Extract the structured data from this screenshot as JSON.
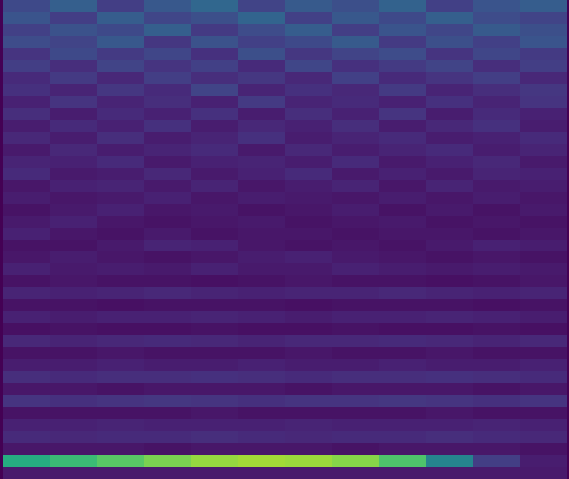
{
  "chart_data": {
    "type": "heatmap",
    "color": "viridis",
    "tick_labels": false,
    "zlim": [
      0,
      1
    ],
    "values": [
      [
        0.22,
        0.3,
        0.18,
        0.27,
        0.33,
        0.2,
        0.28,
        0.24,
        0.31,
        0.19,
        0.26,
        0.29
      ],
      [
        0.26,
        0.18,
        0.29,
        0.21,
        0.24,
        0.32,
        0.19,
        0.27,
        0.22,
        0.3,
        0.23,
        0.2
      ],
      [
        0.19,
        0.25,
        0.22,
        0.3,
        0.17,
        0.23,
        0.29,
        0.18,
        0.26,
        0.21,
        0.28,
        0.24
      ],
      [
        0.23,
        0.2,
        0.27,
        0.16,
        0.25,
        0.19,
        0.22,
        0.28,
        0.17,
        0.24,
        0.19,
        0.26
      ],
      [
        0.15,
        0.22,
        0.17,
        0.21,
        0.14,
        0.24,
        0.16,
        0.2,
        0.23,
        0.15,
        0.21,
        0.17
      ],
      [
        0.18,
        0.13,
        0.2,
        0.15,
        0.19,
        0.12,
        0.21,
        0.14,
        0.17,
        0.2,
        0.13,
        0.18
      ],
      [
        0.12,
        0.17,
        0.11,
        0.18,
        0.13,
        0.16,
        0.11,
        0.19,
        0.12,
        0.15,
        0.18,
        0.11
      ],
      [
        0.14,
        0.1,
        0.16,
        0.12,
        0.2,
        0.1,
        0.14,
        0.11,
        0.17,
        0.1,
        0.13,
        0.16
      ],
      [
        0.09,
        0.15,
        0.1,
        0.13,
        0.09,
        0.17,
        0.1,
        0.12,
        0.09,
        0.14,
        0.1,
        0.15
      ],
      [
        0.13,
        0.08,
        0.12,
        0.09,
        0.14,
        0.08,
        0.13,
        0.09,
        0.15,
        0.08,
        0.12,
        0.09
      ],
      [
        0.08,
        0.12,
        0.09,
        0.14,
        0.08,
        0.11,
        0.09,
        0.13,
        0.08,
        0.11,
        0.14,
        0.08
      ],
      [
        0.11,
        0.08,
        0.13,
        0.08,
        0.1,
        0.14,
        0.08,
        0.1,
        0.12,
        0.08,
        0.09,
        0.12
      ],
      [
        0.07,
        0.11,
        0.08,
        0.1,
        0.12,
        0.07,
        0.11,
        0.08,
        0.1,
        0.12,
        0.08,
        0.1
      ],
      [
        0.1,
        0.09,
        0.12,
        0.07,
        0.09,
        0.1,
        0.08,
        0.12,
        0.07,
        0.09,
        0.11,
        0.07
      ],
      [
        0.12,
        0.07,
        0.08,
        0.11,
        0.07,
        0.09,
        0.12,
        0.07,
        0.09,
        0.07,
        0.1,
        0.09
      ],
      [
        0.06,
        0.09,
        0.1,
        0.07,
        0.1,
        0.06,
        0.08,
        0.1,
        0.06,
        0.1,
        0.07,
        0.08
      ],
      [
        0.08,
        0.06,
        0.07,
        0.09,
        0.06,
        0.08,
        0.07,
        0.06,
        0.08,
        0.06,
        0.08,
        0.06
      ],
      [
        0.05,
        0.07,
        0.09,
        0.06,
        0.07,
        0.05,
        0.06,
        0.08,
        0.05,
        0.07,
        0.05,
        0.07
      ],
      [
        0.07,
        0.09,
        0.06,
        0.05,
        0.06,
        0.07,
        0.05,
        0.06,
        0.07,
        0.05,
        0.06,
        0.05
      ],
      [
        0.09,
        0.06,
        0.05,
        0.07,
        0.05,
        0.06,
        0.06,
        0.05,
        0.06,
        0.06,
        0.05,
        0.06
      ],
      [
        0.05,
        0.05,
        0.07,
        0.1,
        0.09,
        0.06,
        0.05,
        0.06,
        0.05,
        0.07,
        0.09,
        0.08
      ],
      [
        0.06,
        0.08,
        0.06,
        0.05,
        0.06,
        0.08,
        0.09,
        0.07,
        0.06,
        0.05,
        0.06,
        0.05
      ],
      [
        0.09,
        0.07,
        0.08,
        0.07,
        0.09,
        0.07,
        0.07,
        0.09,
        0.08,
        0.07,
        0.08,
        0.07
      ],
      [
        0.05,
        0.06,
        0.05,
        0.05,
        0.04,
        0.05,
        0.06,
        0.05,
        0.05,
        0.04,
        0.05,
        0.06
      ],
      [
        0.1,
        0.09,
        0.1,
        0.11,
        0.1,
        0.09,
        0.1,
        0.1,
        0.11,
        0.1,
        0.09,
        0.1
      ],
      [
        0.05,
        0.05,
        0.04,
        0.05,
        0.05,
        0.05,
        0.04,
        0.05,
        0.05,
        0.05,
        0.04,
        0.05
      ],
      [
        0.09,
        0.08,
        0.09,
        0.09,
        0.1,
        0.09,
        0.08,
        0.09,
        0.09,
        0.1,
        0.09,
        0.08
      ],
      [
        0.04,
        0.05,
        0.04,
        0.04,
        0.05,
        0.04,
        0.04,
        0.05,
        0.04,
        0.04,
        0.05,
        0.04
      ],
      [
        0.11,
        0.1,
        0.11,
        0.12,
        0.11,
        0.1,
        0.11,
        0.11,
        0.12,
        0.11,
        0.1,
        0.11
      ],
      [
        0.05,
        0.05,
        0.06,
        0.05,
        0.05,
        0.05,
        0.06,
        0.05,
        0.05,
        0.06,
        0.05,
        0.05
      ],
      [
        0.08,
        0.08,
        0.09,
        0.08,
        0.08,
        0.09,
        0.08,
        0.08,
        0.09,
        0.08,
        0.08,
        0.09
      ],
      [
        0.13,
        0.12,
        0.13,
        0.13,
        0.14,
        0.13,
        0.12,
        0.13,
        0.13,
        0.14,
        0.13,
        0.12
      ],
      [
        0.06,
        0.06,
        0.05,
        0.06,
        0.06,
        0.06,
        0.05,
        0.06,
        0.06,
        0.06,
        0.05,
        0.06
      ],
      [
        0.15,
        0.14,
        0.15,
        0.16,
        0.15,
        0.14,
        0.15,
        0.15,
        0.16,
        0.15,
        0.14,
        0.15
      ],
      [
        0.05,
        0.05,
        0.05,
        0.05,
        0.06,
        0.05,
        0.05,
        0.05,
        0.05,
        0.06,
        0.05,
        0.05
      ],
      [
        0.09,
        0.09,
        0.1,
        0.09,
        0.09,
        0.09,
        0.1,
        0.09,
        0.09,
        0.09,
        0.1,
        0.09
      ],
      [
        0.12,
        0.11,
        0.12,
        0.12,
        0.13,
        0.12,
        0.11,
        0.12,
        0.12,
        0.13,
        0.12,
        0.11
      ],
      [
        0.06,
        0.06,
        0.06,
        0.05,
        0.06,
        0.06,
        0.06,
        0.05,
        0.06,
        0.06,
        0.06,
        0.05
      ],
      [
        0.62,
        0.68,
        0.74,
        0.8,
        0.84,
        0.86,
        0.85,
        0.82,
        0.72,
        0.45,
        0.18,
        0.08
      ],
      [
        0.07,
        0.07,
        0.07,
        0.07,
        0.07,
        0.07,
        0.07,
        0.07,
        0.07,
        0.07,
        0.07,
        0.07
      ]
    ]
  }
}
